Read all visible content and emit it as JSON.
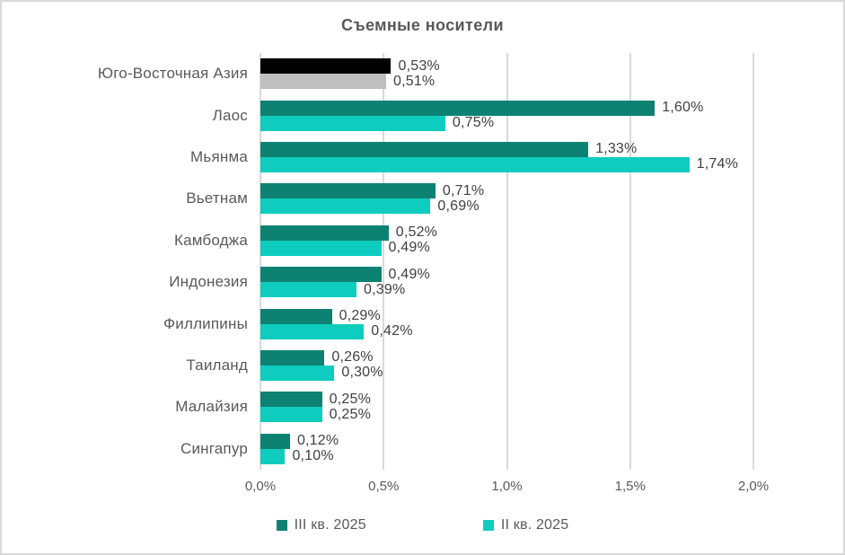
{
  "frame": {
    "background": "#FFFFFF",
    "border_color": "#D9D9D9"
  },
  "chart_data": {
    "type": "bar",
    "orientation": "horizontal",
    "title": "Съемные носители",
    "categories": [
      "Юго-Восточная Азия",
      "Лаос",
      "Мьянма",
      "Вьетнам",
      "Камбоджа",
      "Индонезия",
      "Филлипины",
      "Таиланд",
      "Малайзия",
      "Сингапур"
    ],
    "series": [
      {
        "name": "III кв. 2025",
        "color": "#0E8272",
        "values": [
          0.53,
          1.6,
          1.33,
          0.71,
          0.52,
          0.49,
          0.29,
          0.26,
          0.25,
          0.12
        ],
        "data_labels": [
          "0,53%",
          "1,60%",
          "1,33%",
          "0,71%",
          "0,52%",
          "0,49%",
          "0,29%",
          "0,26%",
          "0,25%",
          "0,12%"
        ]
      },
      {
        "name": "II кв. 2025",
        "color": "#0ECDBE",
        "values": [
          0.51,
          0.75,
          1.74,
          0.69,
          0.49,
          0.39,
          0.42,
          0.3,
          0.25,
          0.1
        ],
        "data_labels": [
          "0,51%",
          "0,75%",
          "1,74%",
          "0,69%",
          "0,49%",
          "0,39%",
          "0,42%",
          "0,30%",
          "0,25%",
          "0,10%"
        ]
      }
    ],
    "highlight_override": {
      "category": "Юго-Восточная Азия",
      "bar_colors": [
        "#000000",
        "#BFBFBF"
      ]
    },
    "x_axis": {
      "min": 0,
      "max": 2.0,
      "ticks": [
        "0,0%",
        "0,5%",
        "1,0%",
        "1,5%",
        "2,0%"
      ],
      "tick_values": [
        0.0,
        0.5,
        1.0,
        1.5,
        2.0
      ]
    },
    "grid": {
      "vertical": true,
      "color": "#D9D9D9"
    },
    "legend": {
      "position": "bottom",
      "items": [
        {
          "label": "III кв. 2025",
          "color": "#0E8272"
        },
        {
          "label": "II кв. 2025",
          "color": "#0ECDBE"
        }
      ]
    },
    "text_colors": {
      "title": "#595959",
      "category_labels": "#595959",
      "axis_ticks": "#595959",
      "data_labels": "#404040"
    }
  }
}
